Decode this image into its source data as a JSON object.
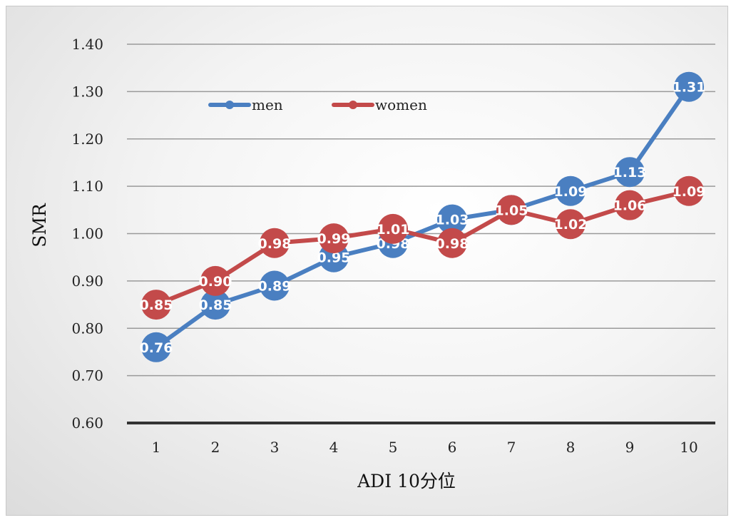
{
  "chart_data": {
    "type": "line",
    "xlabel": "ADI 10分位",
    "ylabel": "SMR",
    "categories": [
      "1",
      "2",
      "3",
      "4",
      "5",
      "6",
      "7",
      "8",
      "9",
      "10"
    ],
    "ylim": [
      0.6,
      1.4
    ],
    "yticks": [
      "0.60",
      "0.70",
      "0.80",
      "0.90",
      "1.00",
      "1.10",
      "1.20",
      "1.30",
      "1.40"
    ],
    "grid": true,
    "legend_position": "top-left",
    "series": [
      {
        "name": "men",
        "color": "#4a7fc1",
        "values": [
          0.76,
          0.85,
          0.89,
          0.95,
          0.98,
          1.03,
          1.05,
          1.09,
          1.13,
          1.31
        ],
        "labels": [
          "0.76",
          "0.85",
          "0.89",
          "0.95",
          "0.98",
          "1.03",
          "1.05",
          "1.09",
          "1.13",
          "1.31"
        ]
      },
      {
        "name": "women",
        "color": "#c34a4a",
        "values": [
          0.85,
          0.9,
          0.98,
          0.99,
          1.01,
          0.98,
          1.05,
          1.02,
          1.06,
          1.09
        ],
        "labels": [
          "0.85",
          "0.90",
          "0.98",
          "0.99",
          "1.01",
          "0.98",
          "1.05",
          "1.02",
          "1.06",
          "1.09"
        ]
      }
    ]
  }
}
